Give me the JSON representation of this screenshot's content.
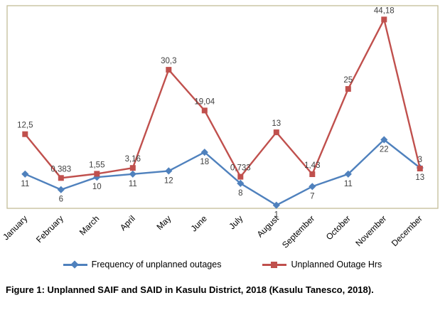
{
  "chart_data": {
    "type": "line",
    "title": "",
    "categories": [
      "January",
      "February",
      "March",
      "April",
      "May",
      "June",
      "July",
      "August",
      "September",
      "October",
      "November",
      "December"
    ],
    "series": [
      {
        "name": "Frequency of unplanned outages",
        "color": "#4F81BD",
        "marker": "diamond",
        "values": [
          11,
          6,
          10,
          11,
          12,
          18,
          8,
          1,
          7,
          11,
          22,
          13
        ],
        "labels": [
          "11",
          "6",
          "10",
          "11",
          "12",
          "18",
          "8",
          "1",
          "7",
          "11",
          "22",
          "13"
        ],
        "axis_range": [
          0,
          65
        ],
        "label_position": "below"
      },
      {
        "name": "Unplanned Outage Hrs",
        "color": "#C0504D",
        "marker": "square",
        "values": [
          12.5,
          0.383,
          1.55,
          3.16,
          30.3,
          19.04,
          0.733,
          13,
          1.43,
          25,
          44.18,
          3
        ],
        "labels": [
          "12,5",
          "0,383",
          "1,55",
          "3,16",
          "30,3",
          "19,04",
          "0,733",
          "13",
          "1,43",
          "25",
          "44,18",
          "3"
        ],
        "axis_range": [
          -8,
          48
        ],
        "label_position": "above"
      }
    ],
    "legend_position": "bottom",
    "grid": false,
    "plot_border_color": "#C4BD97",
    "label_color": "#404040",
    "tick_label_color": "#000000"
  },
  "caption": "Figure 1: Unplanned SAIF and SAID in Kasulu District, 2018 (Kasulu Tanesco, 2018)."
}
